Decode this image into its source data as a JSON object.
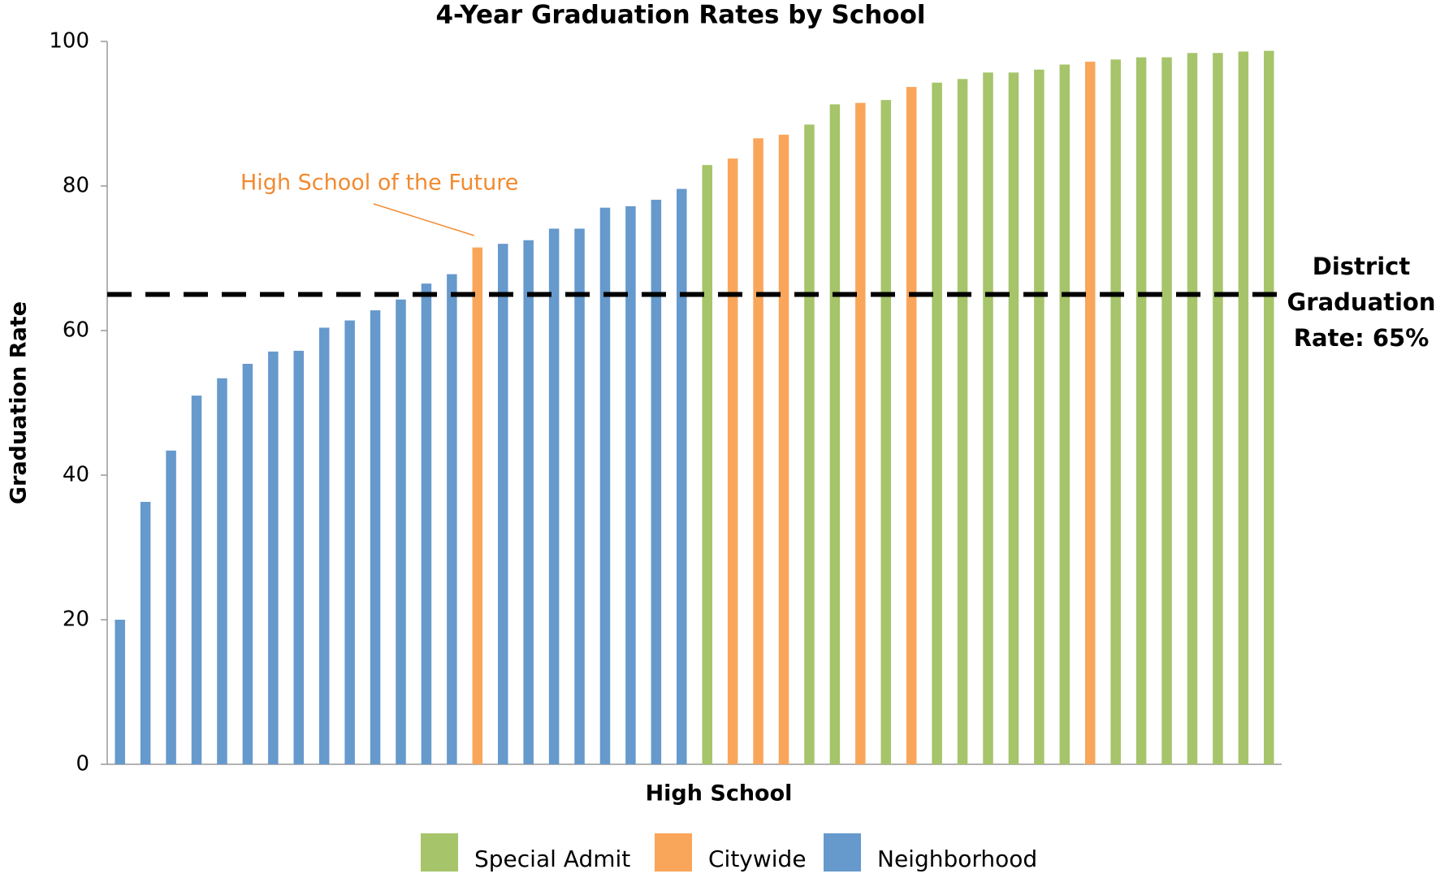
{
  "chart_data": {
    "type": "bar",
    "title": "4-Year Graduation Rates by School",
    "x_label": "High School",
    "y_label": "Graduation Rate",
    "categories": [
      null,
      null,
      null,
      null,
      null,
      null,
      null,
      null,
      null,
      null,
      null,
      null,
      null,
      null,
      null,
      null,
      null,
      null,
      null,
      null,
      null,
      null,
      null,
      null,
      null,
      null,
      null,
      null,
      null,
      null,
      null,
      null,
      null,
      null,
      null,
      null,
      null,
      null,
      null,
      null,
      null,
      null,
      null,
      null,
      null,
      null
    ],
    "series": [
      {
        "name": "Special Admit",
        "color": "#a6c46a",
        "values": [
          null,
          null,
          null,
          null,
          null,
          null,
          null,
          null,
          null,
          null,
          null,
          null,
          null,
          null,
          null,
          null,
          null,
          null,
          null,
          null,
          null,
          null,
          null,
          82.9,
          null,
          null,
          null,
          88.5,
          91.3,
          null,
          91.9,
          null,
          94.3,
          94.8,
          95.7,
          95.7,
          96.1,
          96.8,
          null,
          97.5,
          97.8,
          97.8,
          98.4,
          98.4,
          98.6,
          98.7
        ]
      },
      {
        "name": "Citywide",
        "color": "#f9a65a",
        "values": [
          null,
          null,
          null,
          null,
          null,
          null,
          null,
          null,
          null,
          null,
          null,
          null,
          null,
          null,
          71.5,
          null,
          null,
          null,
          null,
          null,
          null,
          null,
          null,
          null,
          83.8,
          86.6,
          87.1,
          null,
          null,
          91.5,
          null,
          93.7,
          null,
          null,
          null,
          null,
          null,
          null,
          97.2,
          null,
          null,
          null,
          null,
          null,
          null,
          null
        ]
      },
      {
        "name": "Neighborhood",
        "color": "#6699cc",
        "values": [
          20.0,
          36.3,
          43.4,
          51.0,
          53.4,
          55.4,
          57.1,
          57.2,
          60.4,
          61.4,
          62.8,
          64.3,
          66.5,
          67.8,
          null,
          72.0,
          72.5,
          74.1,
          74.1,
          77.0,
          77.2,
          78.1,
          79.6,
          null,
          null,
          null,
          null,
          null,
          null,
          null,
          null,
          null,
          null,
          null,
          null,
          null,
          null,
          null,
          null,
          null,
          null,
          null,
          null,
          null,
          null,
          null
        ]
      }
    ],
    "ylim": [
      0,
      100
    ],
    "yticks": [
      0,
      20,
      40,
      60,
      80,
      100
    ],
    "grid": false,
    "legend": "bottom",
    "reference_line": {
      "value": 65,
      "color": "#000000",
      "label_lines": [
        "District",
        "Graduation",
        "Rate: 65%"
      ]
    },
    "annotation": {
      "text": "High School of the Future",
      "index": 14,
      "color": "#f28a30"
    }
  }
}
